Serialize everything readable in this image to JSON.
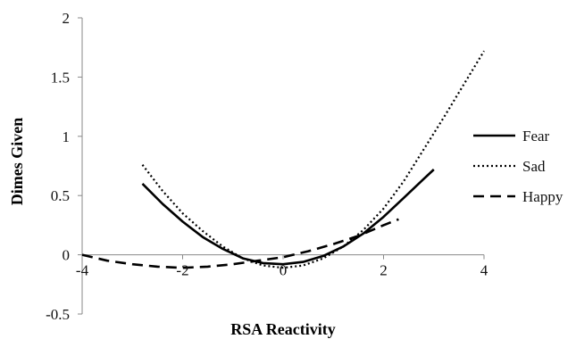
{
  "chart_data": {
    "type": "line",
    "xlabel": "RSA Reactivity",
    "ylabel": "Dimes Given",
    "xlim": [
      -4,
      4
    ],
    "ylim": [
      -0.5,
      2
    ],
    "xticks": [
      "-4",
      "-2",
      "0",
      "2",
      "4"
    ],
    "yticks": [
      "-0.5",
      "0",
      "0.5",
      "1",
      "1.5",
      "2"
    ],
    "legend_position": "right",
    "series": [
      {
        "name": "Fear",
        "style": "solid",
        "color": "#000000",
        "x": [
          -2.8,
          -2.4,
          -2.0,
          -1.6,
          -1.2,
          -0.8,
          -0.4,
          0.0,
          0.4,
          0.8,
          1.2,
          1.6,
          2.0,
          2.4,
          2.8,
          3.0
        ],
        "y": [
          0.6,
          0.43,
          0.28,
          0.15,
          0.05,
          -0.03,
          -0.07,
          -0.08,
          -0.06,
          -0.01,
          0.07,
          0.18,
          0.32,
          0.48,
          0.64,
          0.72
        ]
      },
      {
        "name": "Sad",
        "style": "dotted",
        "color": "#000000",
        "x": [
          -2.8,
          -2.4,
          -2.0,
          -1.6,
          -1.2,
          -0.8,
          -0.4,
          0.0,
          0.4,
          0.8,
          1.2,
          1.6,
          2.0,
          2.4,
          2.8,
          3.2,
          3.6,
          4.0
        ],
        "y": [
          0.76,
          0.54,
          0.35,
          0.2,
          0.07,
          -0.03,
          -0.09,
          -0.11,
          -0.09,
          -0.03,
          0.07,
          0.21,
          0.39,
          0.62,
          0.89,
          1.16,
          1.44,
          1.72
        ]
      },
      {
        "name": "Happy",
        "style": "dashed",
        "color": "#000000",
        "x": [
          -4.0,
          -3.5,
          -3.0,
          -2.5,
          -2.0,
          -1.5,
          -1.0,
          -0.5,
          0.0,
          0.5,
          1.0,
          1.5,
          2.0,
          2.3
        ],
        "y": [
          0.0,
          -0.05,
          -0.08,
          -0.1,
          -0.11,
          -0.1,
          -0.08,
          -0.05,
          -0.02,
          0.03,
          0.09,
          0.16,
          0.25,
          0.3
        ]
      }
    ]
  }
}
